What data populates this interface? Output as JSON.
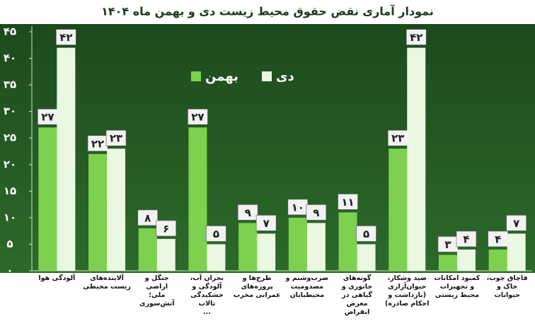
{
  "chart_data": {
    "type": "bar",
    "title": "نمودار آماری نقض حقوق محیط زیست دی و بهمن ماه ۱۴۰۴",
    "categories": [
      "آلودگی هوا",
      "آلاینده‌های\nزیست محیطی",
      "جنگل و اراضی\nملی؛\nآتش‌سوزی",
      "بحران آب،\nآلودگی و\nخشکیدگی تالاب\n...",
      "طرح‌ها و\nپروژه‌های\nعمرانی مخرب",
      "ضرب‌وشتم و\nمصدومیت\nمحیطبانان",
      "گونه‌های\nجانوری و\nگیاهی در\nمعرض انقراض",
      "صید وشکار،\nحیوان‌آزاری\n(بازداشت و\nاحکام صادره)",
      "کمبود امکانات\nو تجهیزات\nمحیط زیستی",
      "قاچاق چوب،\nخاک و حیوانات"
    ],
    "series": [
      {
        "name": "بهمن",
        "color": "#7dd14f",
        "values": [
          27,
          22,
          8,
          27,
          9,
          10,
          11,
          23,
          3,
          4
        ],
        "value_labels": [
          "۲۷",
          "۲۲",
          "۸",
          "۲۷",
          "۹",
          "۱۰",
          "۱۱",
          "۲۳",
          "۳",
          "۴"
        ]
      },
      {
        "name": "دی",
        "color": "#eaf8e2",
        "values": [
          42,
          23,
          6,
          5,
          7,
          9,
          5,
          42,
          4,
          7
        ],
        "value_labels": [
          "۴۲",
          "۲۳",
          "۶",
          "۵",
          "۷",
          "۹",
          "۵",
          "۴۲",
          "۴",
          "۷"
        ]
      }
    ],
    "ylim": [
      0,
      45
    ],
    "yticks": [
      {
        "value": 0,
        "label": "۰"
      },
      {
        "value": 5,
        "label": "۵"
      },
      {
        "value": 10,
        "label": "۱۰"
      },
      {
        "value": 15,
        "label": "۱۵"
      },
      {
        "value": 20,
        "label": "۲۰"
      },
      {
        "value": 25,
        "label": "۲۵"
      },
      {
        "value": 30,
        "label": "۳۰"
      },
      {
        "value": 35,
        "label": "۳۵"
      },
      {
        "value": 40,
        "label": "۴۰"
      },
      {
        "value": 45,
        "label": "۴۵"
      }
    ],
    "grid": false
  }
}
